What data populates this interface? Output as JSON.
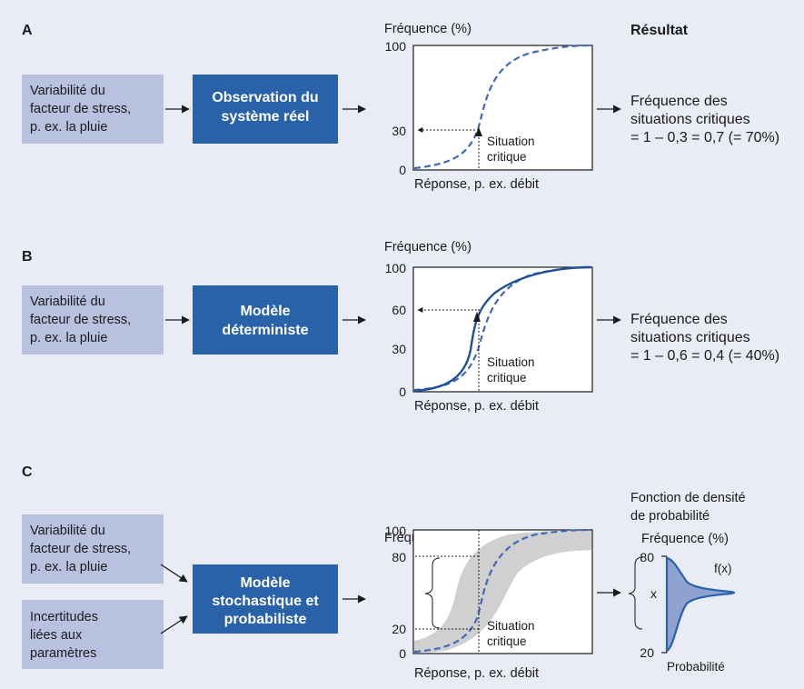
{
  "colors": {
    "background": "#e9ecf5",
    "input_box": "#b9c1e0",
    "model_box": "#2a62a9",
    "curve_dark": "#1f4f94",
    "curve_dashed": "#3f6bb5",
    "uncertainty_band": "#d0d0d0",
    "density_fill": "#8fa3d1"
  },
  "header": {
    "result": "Résultat"
  },
  "common": {
    "frequency_axis": "Fréquence (%)",
    "response_axis": "Réponse, p. ex. débit",
    "critical": [
      "Situation",
      "critique"
    ],
    "stress_input": [
      "Variabilité du",
      "facteur de stress,",
      "p. ex. la pluie"
    ]
  },
  "panel_a": {
    "letter": "A",
    "model": [
      "Observation du",
      "système réel"
    ],
    "ticks": {
      "top": "100",
      "mark": "30",
      "bottom": "0"
    },
    "result": [
      "Fréquence des",
      "situations critiques",
      "= 1 – 0,3 = 0,7 (= 70%)"
    ]
  },
  "panel_b": {
    "letter": "B",
    "model": [
      "Modèle",
      "déterministe"
    ],
    "ticks": {
      "top": "100",
      "mark": "60",
      "mid": "30",
      "bottom": "0"
    },
    "result": [
      "Fréquence des",
      "situations critiques",
      "= 1 – 0,6 = 0,4  (= 40%)"
    ]
  },
  "panel_c": {
    "letter": "C",
    "uncertainty_input": [
      "Incertitudes",
      "liées aux",
      "paramètres"
    ],
    "model": [
      "Modèle",
      "stochastique et",
      "probabiliste"
    ],
    "ticks": {
      "top": "100",
      "upper": "80",
      "lower": "20",
      "bottom": "0"
    },
    "density": {
      "title": [
        "Fonction de densité",
        "de probabilité"
      ],
      "axis": "Fréquence (%)",
      "top": "80",
      "bottom": "20",
      "variable": "x",
      "function": "f(x)",
      "xlabel": "Probabilité"
    }
  }
}
